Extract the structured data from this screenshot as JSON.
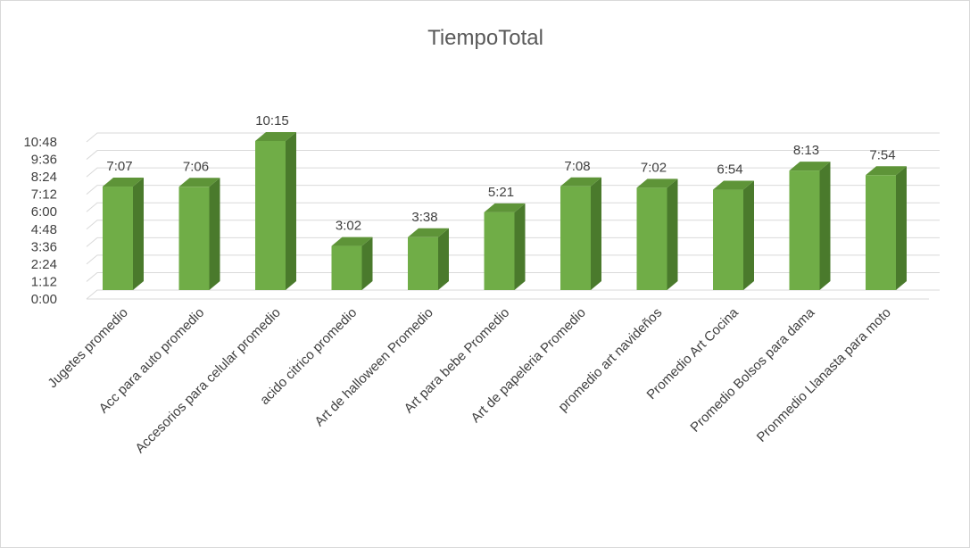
{
  "chart_data": {
    "type": "bar",
    "title": "TiempoTotal",
    "xlabel": "",
    "ylabel": "",
    "categories": [
      "Jugetes promedio",
      "Acc para auto promedio",
      "Accesorios para celular promedio",
      "acido citrico promedio",
      "Art de halloween Promedio",
      "Art para bebe Promedio",
      "Art de papeleria Promedio",
      "promedio art navideños",
      "Promedio Art Cocina",
      "Promedio Bolsos para dama",
      "Pronmedio Llanasta para moto"
    ],
    "values": [
      427,
      426,
      615,
      182,
      218,
      321,
      428,
      422,
      414,
      493,
      474
    ],
    "value_labels": [
      "7:07",
      "7:06",
      "10:15",
      "3:02",
      "3:38",
      "5:21",
      "7:08",
      "7:02",
      "6:54",
      "8:13",
      "7:54"
    ],
    "ylim": [
      0,
      648
    ],
    "ytick_values": [
      0,
      72,
      144,
      216,
      288,
      360,
      432,
      504,
      576,
      648
    ],
    "ytick_labels": [
      "0:00",
      "1:12",
      "2:24",
      "3:36",
      "4:48",
      "6:00",
      "7:12",
      "8:24",
      "9:36",
      "10:48"
    ],
    "grid": true,
    "legend": "none",
    "style": "3d-column",
    "colors": {
      "bar_front": "#70ad47",
      "bar_side": "#4a7a2c",
      "bar_top": "#5e9438",
      "gridline": "#d9d9d9"
    }
  }
}
